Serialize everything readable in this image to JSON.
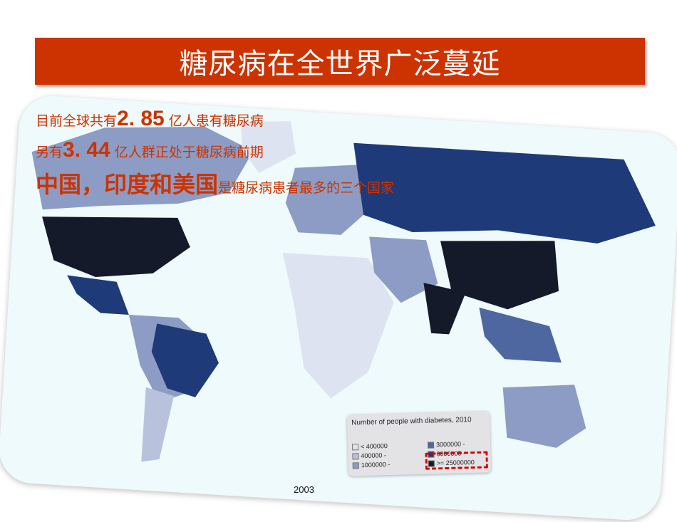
{
  "slide": {
    "title": "糖尿病在全世界广泛蔓延"
  },
  "text": {
    "line1": {
      "pre": "目前全球共有",
      "num": "2. 85",
      "post": "亿人患有糖尿病"
    },
    "line2": {
      "pre": "另有",
      "num": "3. 44",
      "post": "亿人群正处于糖尿病前期"
    },
    "line3": {
      "bold": "中国，印度和美国",
      "post": "是糖尿病患者最多的三个国家"
    }
  },
  "legend": {
    "title": "Number of people with diabetes, 2010",
    "items": [
      {
        "label": "< 400000",
        "color": "#dde3f0"
      },
      {
        "label": "400000 -",
        "color": "#b8c2dc"
      },
      {
        "label": "1000000 -",
        "color": "#8d9cc4"
      },
      {
        "label": "3000000 -",
        "color": "#4f67a0"
      },
      {
        "label": "6000000 -",
        "color": "#1f3a78"
      },
      {
        "label": ">= 25000000",
        "color": "#151a2a"
      }
    ]
  },
  "bottom_note": "2003",
  "colors": {
    "accent": "#cc3300",
    "ocean": "#eefafb"
  }
}
